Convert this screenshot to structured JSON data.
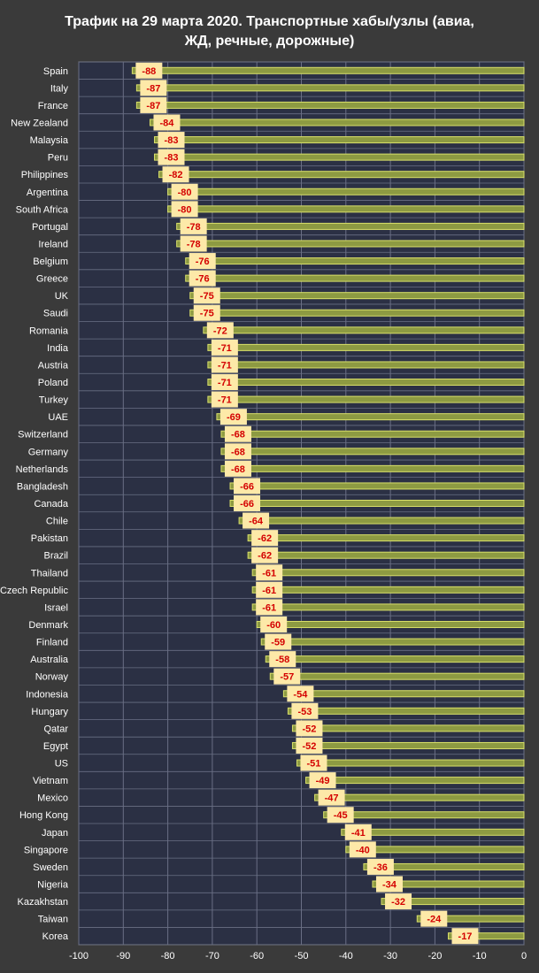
{
  "title_line1": "Трафик на 29 марта 2020. Транспортные хабы/узлы (авиа,",
  "title_line2": "ЖД, речные, дорожные)",
  "colors": {
    "background": "#3a3a3a",
    "plot_background": "#2b3044",
    "bar_fill": "#8d9a42",
    "bar_stroke": "#d9e06a",
    "grid": "#6a6f85",
    "label_box": "#fde9a8",
    "label_text": "#d40000",
    "axis_text": "#ffffff"
  },
  "chart_data": {
    "type": "bar",
    "orientation": "horizontal",
    "title": "Трафик на 29 марта 2020. Транспортные хабы/узлы (авиа, ЖД, речные, дорожные)",
    "xlim": [
      -100,
      0
    ],
    "xticks": [
      -100,
      -90,
      -80,
      -70,
      -60,
      -50,
      -40,
      -30,
      -20,
      -10,
      0
    ],
    "grid": true,
    "categories": [
      "Spain",
      "Italy",
      "France",
      "New Zealand",
      "Malaysia",
      "Peru",
      "Philippines",
      "Argentina",
      "South Africa",
      "Portugal",
      "Ireland",
      "Belgium",
      "Greece",
      "UK",
      "Saudi",
      "Romania",
      "India",
      "Austria",
      "Poland",
      "Turkey",
      "UAE",
      "Switzerland",
      "Germany",
      "Netherlands",
      "Bangladesh",
      "Canada",
      "Chile",
      "Pakistan",
      "Brazil",
      "Thailand",
      "Czech Republic",
      "Israel",
      "Denmark",
      "Finland",
      "Australia",
      "Norway",
      "Indonesia",
      "Hungary",
      "Qatar",
      "Egypt",
      "US",
      "Vietnam",
      "Mexico",
      "Hong Kong",
      "Japan",
      "Singapore",
      "Sweden",
      "Nigeria",
      "Kazakhstan",
      "Taiwan",
      "Korea"
    ],
    "values": [
      -88,
      -87,
      -87,
      -84,
      -83,
      -83,
      -82,
      -80,
      -80,
      -78,
      -78,
      -76,
      -76,
      -75,
      -75,
      -72,
      -71,
      -71,
      -71,
      -71,
      -69,
      -68,
      -68,
      -68,
      -66,
      -66,
      -64,
      -62,
      -62,
      -61,
      -61,
      -61,
      -60,
      -59,
      -58,
      -57,
      -54,
      -53,
      -52,
      -52,
      -51,
      -49,
      -47,
      -45,
      -41,
      -40,
      -36,
      -34,
      -32,
      -24,
      -17
    ]
  }
}
